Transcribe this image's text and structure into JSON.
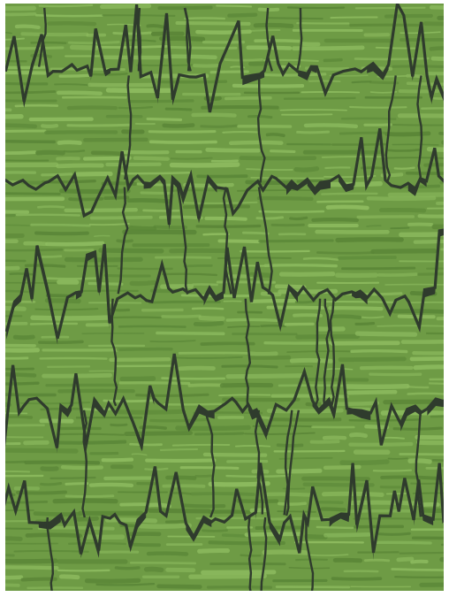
{
  "image": {
    "subject": "abstract-pattern",
    "colors": {
      "page_background": "#ffffff",
      "field": "#6e9b45",
      "texture_light": "#8dbb5f",
      "texture_dark": "#5a8637",
      "line": "#2f3b2d"
    },
    "texture_rows": 70,
    "wave_rows": 5,
    "wave_variant_light_bands": true
  }
}
